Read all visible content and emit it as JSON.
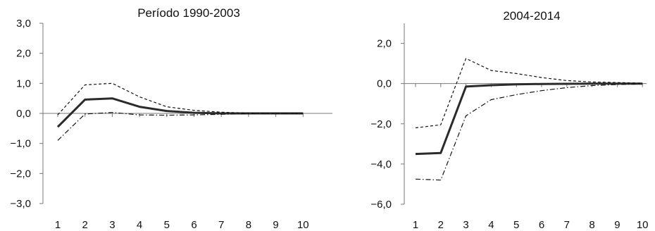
{
  "chart_data": [
    {
      "type": "line",
      "title": "Período 1990-2003",
      "xlabel": "",
      "ylabel": "",
      "x": [
        1,
        2,
        3,
        4,
        5,
        6,
        7,
        8,
        9,
        10
      ],
      "x_tick_labels": [
        "1",
        "2",
        "3",
        "4",
        "5",
        "6",
        "7",
        "8",
        "9",
        "10"
      ],
      "ylim": [
        -3.0,
        3.0
      ],
      "y_ticks": [
        3.0,
        2.0,
        1.0,
        0.0,
        -1.0,
        -2.0,
        -3.0
      ],
      "y_tick_labels": [
        "3,0",
        "2,0",
        "1,0",
        "0,0",
        "−1,0",
        "−2,0",
        "−3,0"
      ],
      "grid": false,
      "series": [
        {
          "style": "solid",
          "values": [
            -0.45,
            0.46,
            0.5,
            0.22,
            0.08,
            0.02,
            0.0,
            0.0,
            0.0,
            0.0
          ]
        },
        {
          "style": "dashed",
          "values": [
            -0.05,
            0.95,
            1.0,
            0.55,
            0.22,
            0.1,
            0.04,
            0.01,
            0.0,
            0.0
          ]
        },
        {
          "style": "dashdot",
          "values": [
            -0.9,
            -0.02,
            0.03,
            -0.05,
            -0.06,
            -0.05,
            -0.03,
            -0.01,
            0.0,
            0.0
          ]
        }
      ]
    },
    {
      "type": "line",
      "title": "2004-2014",
      "xlabel": "",
      "ylabel": "",
      "x": [
        1,
        2,
        3,
        4,
        5,
        6,
        7,
        8,
        9,
        10
      ],
      "x_tick_labels": [
        "1",
        "2",
        "3",
        "4",
        "5",
        "6",
        "7",
        "8",
        "9",
        "10"
      ],
      "ylim": [
        -6.0,
        3.0
      ],
      "y_ticks": [
        2.0,
        0.0,
        -2.0,
        -4.0,
        -6.0
      ],
      "y_tick_labels": [
        "2,0",
        "0,0",
        "−2,0",
        "−4,0",
        "−6,0"
      ],
      "grid": false,
      "series": [
        {
          "style": "solid",
          "values": [
            -3.5,
            -3.45,
            -0.15,
            -0.08,
            -0.04,
            -0.02,
            -0.01,
            0.0,
            0.0,
            0.0
          ]
        },
        {
          "style": "dashed",
          "values": [
            -2.2,
            -2.05,
            1.25,
            0.65,
            0.5,
            0.3,
            0.15,
            0.08,
            0.05,
            0.02
          ]
        },
        {
          "style": "dashdot",
          "values": [
            -4.75,
            -4.8,
            -1.6,
            -0.8,
            -0.55,
            -0.35,
            -0.2,
            -0.1,
            -0.05,
            -0.02
          ]
        }
      ]
    }
  ]
}
